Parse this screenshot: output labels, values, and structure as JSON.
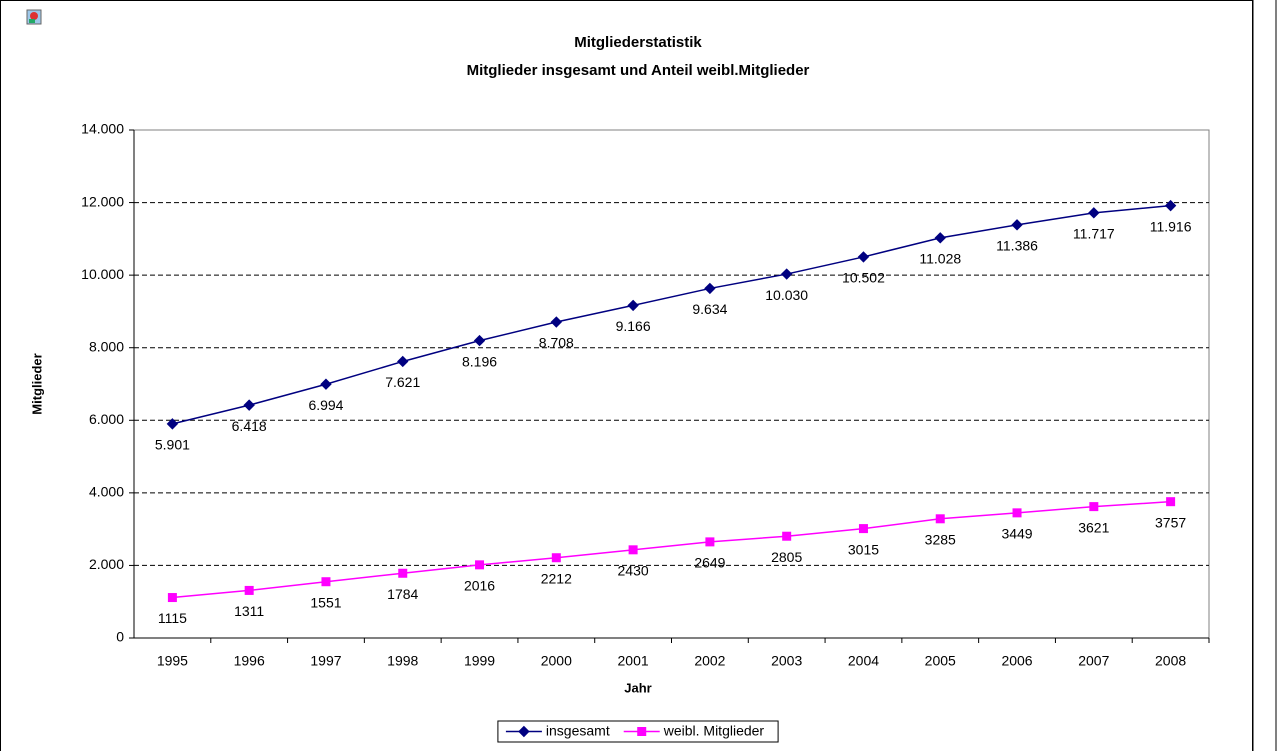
{
  "chart_data": {
    "type": "line",
    "title": "Mitgliederstatistik",
    "subtitle": "Mitglieder insgesamt und Anteil weibl.Mitglieder",
    "x_label": "Jahr",
    "y_label": "Mitglieder",
    "categories": [
      "1995",
      "1996",
      "1997",
      "1998",
      "1999",
      "2000",
      "2001",
      "2002",
      "2003",
      "2004",
      "2005",
      "2006",
      "2007",
      "2008"
    ],
    "series": [
      {
        "name": "insgesamt",
        "color": "#000080",
        "marker": "diamond",
        "values": [
          5901,
          6418,
          6994,
          7621,
          8196,
          8708,
          9166,
          9634,
          10030,
          10502,
          11028,
          11386,
          11717,
          11916
        ],
        "value_labels": [
          "5.901",
          "6.418",
          "6.994",
          "7.621",
          "8.196",
          "8.708",
          "9.166",
          "9.634",
          "10.030",
          "10.502",
          "11.028",
          "11.386",
          "11.717",
          "11.916"
        ]
      },
      {
        "name": "weibl. Mitglieder",
        "color": "#ff00ff",
        "marker": "square",
        "values": [
          1115,
          1311,
          1551,
          1784,
          2016,
          2212,
          2430,
          2649,
          2805,
          3015,
          3285,
          3449,
          3621,
          3757
        ]
      }
    ],
    "ylim": [
      0,
      14000
    ],
    "yticks": [
      0,
      {
        "value": 2000,
        "label": "2.000"
      },
      {
        "value": 4000,
        "label": "4.000"
      },
      {
        "value": 6000,
        "label": "6.000"
      },
      {
        "value": 8000,
        "label": "8.000"
      },
      {
        "value": 10000,
        "label": "10.000"
      },
      {
        "value": 12000,
        "label": "12.000"
      },
      {
        "value": 14000,
        "label": "14.000"
      }
    ],
    "grid": true,
    "legend": "bottom"
  }
}
